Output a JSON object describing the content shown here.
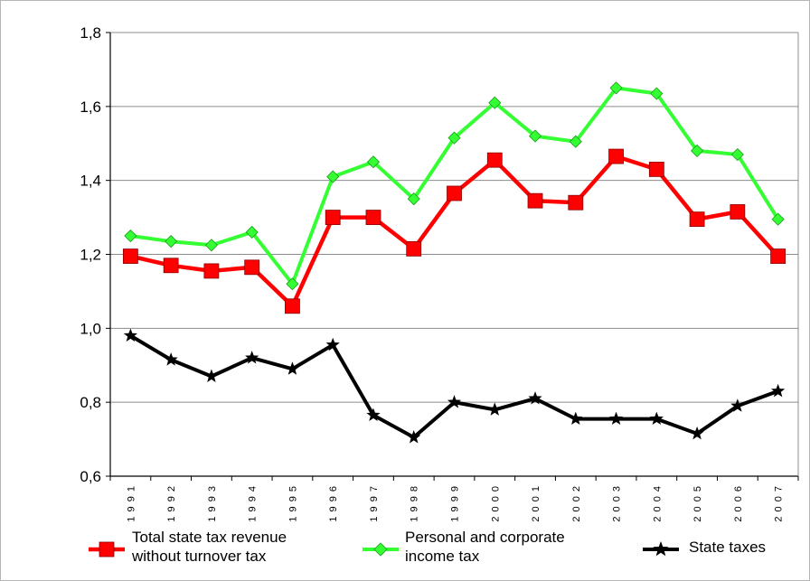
{
  "chart_data": {
    "type": "line",
    "title": "",
    "xlabel": "",
    "ylabel": "",
    "categories": [
      "1991",
      "1992",
      "1993",
      "1994",
      "1995",
      "1996",
      "1997",
      "1998",
      "1999",
      "2000",
      "2001",
      "2002",
      "2003",
      "2004",
      "2005",
      "2006",
      "2007"
    ],
    "category_labels": [
      "1 9 9 1",
      "1 9 9 2",
      "1 9 9 3",
      "1 9 9 4",
      "1 9 9 5",
      "1 9 9 6",
      "1 9 9 7",
      "1 9 9 8",
      "1 9 9 9",
      "2 0 0 0",
      "2 0 0 1",
      "2 0 0 2",
      "2 0 0 3",
      "2 0 0 4",
      "2 0 0 5",
      "2 0 0 6",
      "2 0 0 7"
    ],
    "ylim": [
      0.6,
      1.8
    ],
    "yticks": [
      0.6,
      0.8,
      1.0,
      1.2,
      1.4,
      1.6,
      1.8
    ],
    "ytick_labels": [
      "0,6",
      "0,8",
      "1,0",
      "1,2",
      "1,4",
      "1,6",
      "1,8"
    ],
    "grid": "horizontal",
    "legend_position": "bottom",
    "series": [
      {
        "name": "Total state tax revenue without turnover tax",
        "legend_lines": [
          "Total state tax revenue",
          "without turnover tax"
        ],
        "color": "#ff0000",
        "marker": "square",
        "values": [
          1.195,
          1.17,
          1.155,
          1.165,
          1.06,
          1.3,
          1.3,
          1.215,
          1.365,
          1.455,
          1.345,
          1.34,
          1.465,
          1.43,
          1.295,
          1.315,
          1.195
        ]
      },
      {
        "name": "Personal and corporate income tax",
        "legend_lines": [
          "Personal and corporate",
          "income tax"
        ],
        "color": "#33ff33",
        "marker": "diamond",
        "values": [
          1.25,
          1.235,
          1.225,
          1.26,
          1.12,
          1.41,
          1.45,
          1.35,
          1.515,
          1.61,
          1.52,
          1.505,
          1.65,
          1.635,
          1.48,
          1.47,
          1.295
        ]
      },
      {
        "name": "State taxes",
        "legend_lines": [
          "State taxes"
        ],
        "color": "#000000",
        "marker": "star",
        "values": [
          0.98,
          0.915,
          0.87,
          0.92,
          0.89,
          0.955,
          0.765,
          0.705,
          0.8,
          0.78,
          0.81,
          0.755,
          0.755,
          0.755,
          0.715,
          0.79,
          0.83
        ]
      }
    ]
  }
}
